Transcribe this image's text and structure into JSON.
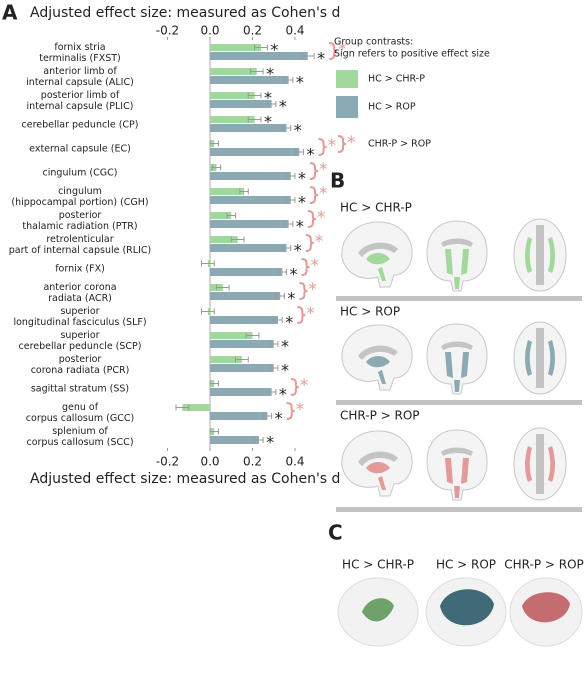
{
  "panel_labels": [
    "A",
    "B",
    "C"
  ],
  "chart_data": {
    "type": "bar",
    "orientation": "horizontal",
    "axis_title": "Adjusted effect size: measured as Cohen's d",
    "categories": [
      [
        "fornix stria",
        "terminalis (FXST)"
      ],
      [
        "anterior limb of",
        "internal capsule (ALIC)"
      ],
      [
        "posterior limb of",
        "internal capsule (PLIC)"
      ],
      [
        "cerebellar peduncle (CP)"
      ],
      [
        "external capsule (EC)"
      ],
      [
        "cingulum (CGC)"
      ],
      [
        "cingulum",
        "(hippocampal portion) (CGH)"
      ],
      [
        "posterior",
        "thalamic radiation (PTR)"
      ],
      [
        "retrolenticular",
        "part of internal capsule (RLIC)"
      ],
      [
        "fornix (FX)"
      ],
      [
        "anterior corona",
        "radiata (ACR)"
      ],
      [
        "superior",
        "longitudinal fasciculus (SLF)"
      ],
      [
        "superior",
        "cerebellar peduncle (SCP)"
      ],
      [
        "posterior",
        "corona radiata (PCR)"
      ],
      [
        "sagittal stratum (SS)"
      ],
      [
        "genu of",
        "corpus callosum (GCC)"
      ],
      [
        "splenium of",
        "corpus callosum (SCC)"
      ]
    ],
    "series": [
      {
        "name": "HC > CHR-P",
        "color": "#a3d89c",
        "values": [
          0.24,
          0.22,
          0.21,
          0.21,
          0.02,
          0.03,
          0.16,
          0.1,
          0.13,
          -0.01,
          0.06,
          -0.01,
          0.2,
          0.15,
          0.02,
          -0.13,
          0.02
        ],
        "errors": [
          0.03,
          0.03,
          0.03,
          0.03,
          0.02,
          0.02,
          0.02,
          0.02,
          0.03,
          0.03,
          0.03,
          0.03,
          0.03,
          0.03,
          0.02,
          0.03,
          0.02
        ],
        "significant": [
          true,
          true,
          true,
          true,
          false,
          false,
          false,
          false,
          false,
          false,
          false,
          false,
          false,
          false,
          false,
          false,
          false
        ]
      },
      {
        "name": "HC > ROP",
        "color": "#8caab4",
        "values": [
          0.46,
          0.37,
          0.29,
          0.36,
          0.42,
          0.38,
          0.38,
          0.37,
          0.36,
          0.34,
          0.33,
          0.32,
          0.3,
          0.3,
          0.29,
          0.27,
          0.23
        ],
        "errors": [
          0.03,
          0.02,
          0.02,
          0.02,
          0.02,
          0.02,
          0.02,
          0.02,
          0.02,
          0.02,
          0.02,
          0.02,
          0.02,
          0.02,
          0.02,
          0.02,
          0.02
        ],
        "significant": [
          true,
          true,
          true,
          true,
          true,
          true,
          true,
          true,
          true,
          true,
          true,
          true,
          true,
          true,
          true,
          true,
          true
        ]
      }
    ],
    "contrast_bracket": {
      "name": "CHR-P > ROP",
      "color": "#e49a98",
      "significant": [
        true,
        false,
        false,
        false,
        true,
        true,
        true,
        true,
        true,
        true,
        true,
        true,
        false,
        false,
        true,
        true,
        false
      ]
    },
    "significance_marker": "*",
    "legend_title": [
      "Group contrasts:",
      "Sign refers to positive effect size"
    ],
    "xlim": [
      -0.3,
      0.55
    ],
    "xticks": [
      -0.2,
      {
        "value": 0,
        "label": "0.0"
      },
      0.2,
      0.4
    ],
    "zero_line": true
  },
  "panel_b": {
    "rows": [
      "HC > CHR-P",
      "HC > ROP",
      "CHR-P > ROP"
    ]
  },
  "panel_c": {
    "labels": [
      "HC > CHR-P",
      "HC > ROP",
      "CHR-P > ROP"
    ]
  }
}
